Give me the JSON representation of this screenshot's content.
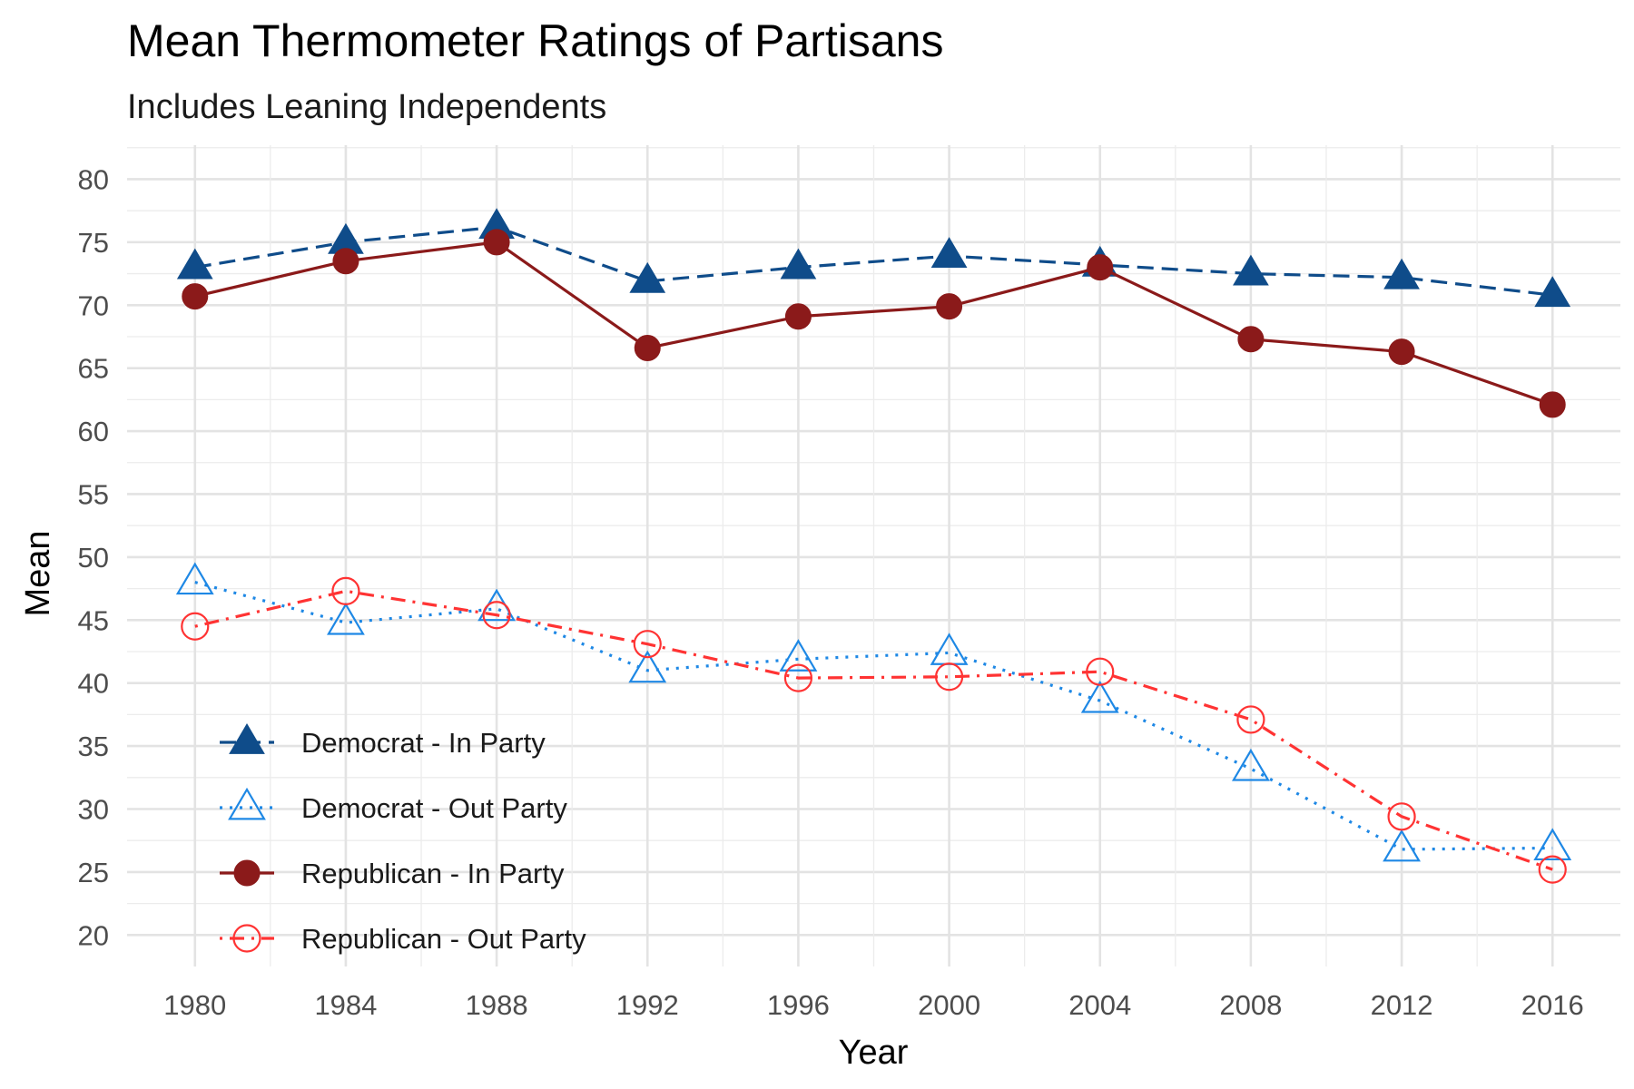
{
  "chart_data": {
    "type": "line",
    "title": "Mean Thermometer Ratings of Partisans",
    "subtitle": "Includes Leaning Independents",
    "xlabel": "Year",
    "ylabel": "Mean",
    "x": [
      1980,
      1984,
      1988,
      1992,
      1996,
      2000,
      2004,
      2008,
      2012,
      2016
    ],
    "x_ticks": [
      "1980",
      "1984",
      "1988",
      "1992",
      "1996",
      "2000",
      "2004",
      "2008",
      "2012",
      "2016"
    ],
    "y_ticks": [
      "20",
      "25",
      "30",
      "35",
      "40",
      "45",
      "50",
      "55",
      "60",
      "65",
      "70",
      "75",
      "80"
    ],
    "xlim": [
      1978.2,
      2017.8
    ],
    "ylim": [
      17.5,
      82.7
    ],
    "grid": true,
    "legend_position": "bottom-left",
    "series": [
      {
        "name": "Democrat - In Party",
        "values": [
          73.0,
          75.0,
          76.2,
          71.9,
          73.0,
          73.9,
          73.2,
          72.5,
          72.2,
          70.8
        ],
        "color": "#0f4c8a",
        "marker": "filled-triangle",
        "line": "dashed"
      },
      {
        "name": "Democrat - Out Party",
        "values": [
          48.0,
          44.8,
          45.9,
          41.0,
          41.9,
          42.4,
          38.6,
          33.2,
          26.8,
          26.9
        ],
        "color": "#1e88e5",
        "marker": "open-triangle",
        "line": "dotted"
      },
      {
        "name": "Republican - In Party",
        "values": [
          70.7,
          73.5,
          75.0,
          66.6,
          69.1,
          69.9,
          73.0,
          67.3,
          66.3,
          62.1
        ],
        "color": "#8b1a1a",
        "marker": "filled-circle",
        "line": "solid"
      },
      {
        "name": "Republican - Out Party",
        "values": [
          44.5,
          47.3,
          45.4,
          43.1,
          40.4,
          40.5,
          40.9,
          37.1,
          29.4,
          25.2
        ],
        "color": "#ff3333",
        "marker": "open-circle",
        "line": "dotdash"
      }
    ]
  }
}
